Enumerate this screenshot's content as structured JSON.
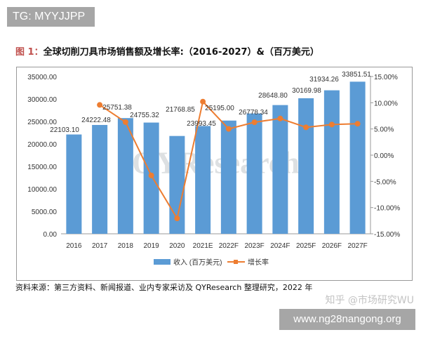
{
  "badge_top": "TG: MYYJJPP",
  "badge_bottom": "www.ng28nangong.org",
  "title_prefix": "图 1：",
  "title_main": "全球切削刀具市场销售额及增长率:（2016-2027）&（百万美元）",
  "footer": "资料来源：第三方资料、新闻报道、业内专家采访及 QYResearch 整理研究，2022 年",
  "watermark_overlay": "知乎 @市场研究WU",
  "chart_data": {
    "type": "bar+line",
    "categories": [
      "2016",
      "2017",
      "2018",
      "2019",
      "2020",
      "2021E",
      "2022F",
      "2023F",
      "2024F",
      "2025F",
      "2026F",
      "2027F"
    ],
    "series": [
      {
        "name": "收入 (百万美元)",
        "type": "bar",
        "axis": "left",
        "color": "#5b9bd5",
        "values": [
          22103.1,
          24222.48,
          25751.38,
          24755.32,
          21768.85,
          23993.45,
          25195.0,
          26778.34,
          28648.8,
          30169.98,
          31934.26,
          33851.51
        ],
        "labels": [
          "22103.10",
          "24222.48",
          "25751.38",
          "24755.32",
          "21768.85",
          "23993.45",
          "25195.00",
          "26778.34",
          "28648.80",
          "30169.98",
          "31934.26",
          "33851.51"
        ]
      },
      {
        "name": "增长率",
        "type": "line",
        "axis": "right",
        "color": "#ed7d31",
        "values": [
          null,
          9.59,
          6.31,
          -3.87,
          -12.06,
          10.22,
          5.01,
          6.28,
          6.99,
          5.31,
          5.85,
          6.0
        ]
      }
    ],
    "y_left": {
      "range": [
        0,
        35000
      ],
      "ticks": [
        "0.00",
        "5000.00",
        "10000.00",
        "15000.00",
        "20000.00",
        "25000.00",
        "30000.00",
        "35000.00"
      ]
    },
    "y_right": {
      "range": [
        -15,
        15
      ],
      "ticks": [
        "-15.00%",
        "-10.00%",
        "-5.00%",
        "0.00%",
        "5.00%",
        "10.00%",
        "15.00%"
      ]
    },
    "watermark": "QYResearch",
    "grid": false,
    "legend": "bottom"
  }
}
